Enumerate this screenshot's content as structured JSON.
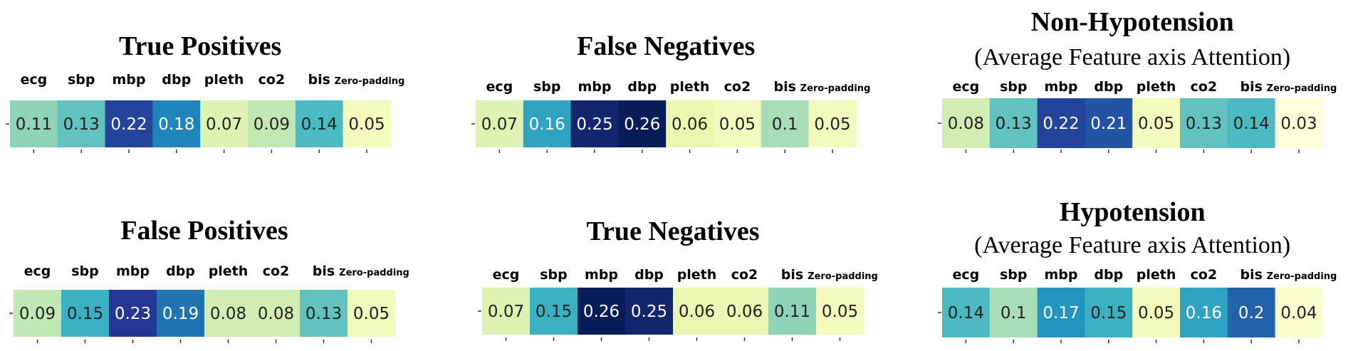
{
  "colors": {
    "scale_min": "#ffffd9",
    "scale_max": "#081d58",
    "text_dark": "#222222",
    "text_light": "#ffffff"
  },
  "chart_data": [
    {
      "type": "heatmap",
      "title": "True Positives",
      "subtitle": "",
      "categories": [
        "ecg",
        "sbp",
        "mbp",
        "dbp",
        "pleth",
        "co2",
        "bis",
        "Zero-padding"
      ],
      "values": [
        0.11,
        0.13,
        0.22,
        0.18,
        0.07,
        0.09,
        0.14,
        0.05
      ],
      "value_labels": [
        "0.11",
        "0.13",
        "0.22",
        "0.18",
        "0.07",
        "0.09",
        "0.14",
        "0.05"
      ],
      "color_range": [
        0.03,
        0.26
      ],
      "colormap": "YlGnBu",
      "grid": false
    },
    {
      "type": "heatmap",
      "title": "False Negatives",
      "subtitle": "",
      "categories": [
        "ecg",
        "sbp",
        "mbp",
        "dbp",
        "pleth",
        "co2",
        "bis",
        "Zero-padding"
      ],
      "values": [
        0.07,
        0.16,
        0.25,
        0.26,
        0.06,
        0.05,
        0.1,
        0.05
      ],
      "value_labels": [
        "0.07",
        "0.16",
        "0.25",
        "0.26",
        "0.06",
        "0.05",
        "0.1",
        "0.05"
      ],
      "color_range": [
        0.03,
        0.26
      ],
      "colormap": "YlGnBu",
      "grid": false
    },
    {
      "type": "heatmap",
      "title": "Non-Hypotension",
      "subtitle": "(Average Feature axis Attention)",
      "categories": [
        "ecg",
        "sbp",
        "mbp",
        "dbp",
        "pleth",
        "co2",
        "bis",
        "Zero-padding"
      ],
      "values": [
        0.08,
        0.13,
        0.22,
        0.21,
        0.05,
        0.13,
        0.14,
        0.03
      ],
      "value_labels": [
        "0.08",
        "0.13",
        "0.22",
        "0.21",
        "0.05",
        "0.13",
        "0.14",
        "0.03"
      ],
      "color_range": [
        0.03,
        0.26
      ],
      "colormap": "YlGnBu",
      "grid": false
    },
    {
      "type": "heatmap",
      "title": "False Positives",
      "subtitle": "",
      "categories": [
        "ecg",
        "sbp",
        "mbp",
        "dbp",
        "pleth",
        "co2",
        "bis",
        "Zero-padding"
      ],
      "values": [
        0.09,
        0.15,
        0.23,
        0.19,
        0.08,
        0.08,
        0.13,
        0.05
      ],
      "value_labels": [
        "0.09",
        "0.15",
        "0.23",
        "0.19",
        "0.08",
        "0.08",
        "0.13",
        "0.05"
      ],
      "color_range": [
        0.03,
        0.26
      ],
      "colormap": "YlGnBu",
      "grid": false
    },
    {
      "type": "heatmap",
      "title": "True Negatives",
      "subtitle": "",
      "categories": [
        "ecg",
        "sbp",
        "mbp",
        "dbp",
        "pleth",
        "co2",
        "bis",
        "Zero-padding"
      ],
      "values": [
        0.07,
        0.15,
        0.26,
        0.25,
        0.06,
        0.06,
        0.11,
        0.05
      ],
      "value_labels": [
        "0.07",
        "0.15",
        "0.26",
        "0.25",
        "0.06",
        "0.06",
        "0.11",
        "0.05"
      ],
      "color_range": [
        0.03,
        0.26
      ],
      "colormap": "YlGnBu",
      "grid": false
    },
    {
      "type": "heatmap",
      "title": "Hypotension",
      "subtitle": "(Average Feature axis Attention)",
      "categories": [
        "ecg",
        "sbp",
        "mbp",
        "dbp",
        "pleth",
        "co2",
        "bis",
        "Zero-padding"
      ],
      "values": [
        0.14,
        0.1,
        0.17,
        0.15,
        0.05,
        0.16,
        0.2,
        0.04
      ],
      "value_labels": [
        "0.14",
        "0.1",
        "0.17",
        "0.15",
        "0.05",
        "0.16",
        "0.2",
        "0.04"
      ],
      "color_range": [
        0.03,
        0.26
      ],
      "colormap": "YlGnBu",
      "grid": false
    }
  ]
}
